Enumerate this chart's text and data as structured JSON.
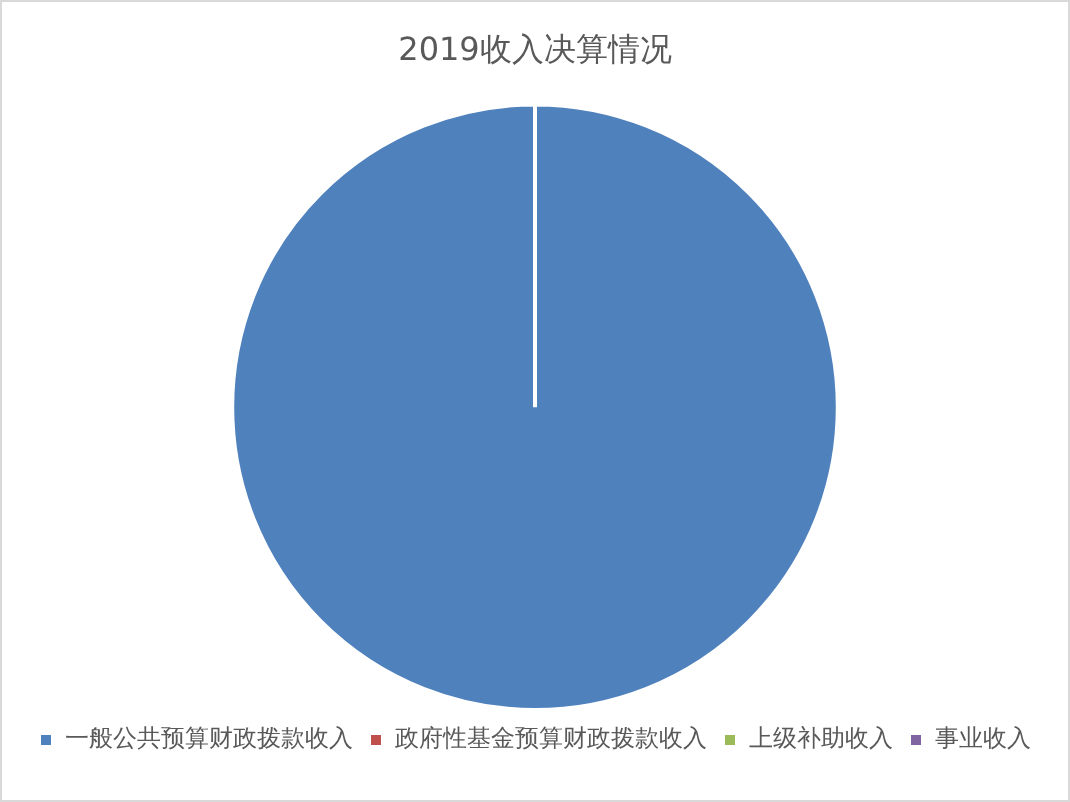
{
  "chart_data": {
    "type": "pie",
    "title": "2019收入决算情况",
    "categories": [
      "一般公共预算财政拨款收入",
      "政府性基金预算财政拨款收入",
      "上级补助收入",
      "事业收入"
    ],
    "values": [
      100,
      0,
      0,
      0
    ],
    "colors": [
      "#4f81bd",
      "#c0504d",
      "#9bbb59",
      "#8064a2"
    ],
    "legend": "bottom"
  }
}
